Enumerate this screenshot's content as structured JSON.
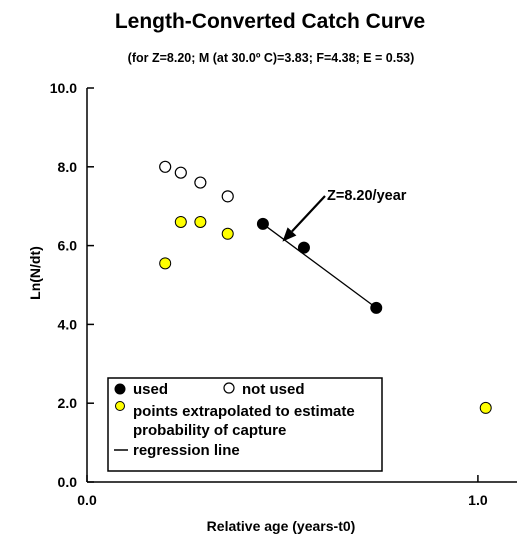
{
  "chart_data": {
    "type": "scatter",
    "title": "Length-Converted Catch Curve",
    "subtitle": "(for Z=8.20; M (at 30.0º C)=3.83; F=4.38; E = 0.53)",
    "xlabel": "Relative age (years-t0)",
    "ylabel": "Ln(N/dt)",
    "xlim": [
      0.0,
      1.1
    ],
    "ylim": [
      0.0,
      10.0
    ],
    "x_ticks": [
      {
        "value": 0.0,
        "label": "0.0"
      },
      {
        "value": 1.0,
        "label": "1.0"
      }
    ],
    "y_ticks": [
      {
        "value": 0.0,
        "label": "0.0"
      },
      {
        "value": 2.0,
        "label": "2.0"
      },
      {
        "value": 4.0,
        "label": "4.0"
      },
      {
        "value": 6.0,
        "label": "6.0"
      },
      {
        "value": 8.0,
        "label": "8.0"
      },
      {
        "value": 10.0,
        "label": "10.0"
      }
    ],
    "grid": false,
    "legend_position": "bottom-left",
    "series": [
      {
        "name": "used",
        "marker": "filled-circle",
        "color": "#000000",
        "points": [
          [
            0.45,
            6.55
          ],
          [
            0.555,
            5.95
          ],
          [
            0.74,
            4.42
          ]
        ]
      },
      {
        "name": "not used",
        "marker": "open-circle",
        "color": "#000000",
        "points": [
          [
            0.2,
            8.0
          ],
          [
            0.24,
            7.85
          ],
          [
            0.29,
            7.6
          ],
          [
            0.36,
            7.25
          ]
        ]
      },
      {
        "name": "points extrapolated  to estimate probability of capture",
        "marker": "yellow-circle",
        "color": "#ffff00",
        "points": [
          [
            0.2,
            5.55
          ],
          [
            0.24,
            6.6
          ],
          [
            0.29,
            6.6
          ],
          [
            0.36,
            6.3
          ],
          [
            1.02,
            1.88
          ]
        ]
      }
    ],
    "regression_line": {
      "name": "regression line",
      "from": [
        0.45,
        6.55
      ],
      "to": [
        0.74,
        4.42
      ],
      "color": "#000000"
    },
    "annotation": {
      "text": "Z=8.20/year",
      "arrow_target": [
        0.5,
        6.1
      ]
    },
    "legend_entries": [
      {
        "label": "used",
        "marker": "filled-circle"
      },
      {
        "label": "not used",
        "marker": "open-circle"
      },
      {
        "label_line1": "points extrapolated  to estimate",
        "label_line2": "probability of capture",
        "marker": "yellow-circle"
      },
      {
        "label": "regression line",
        "marker": "line"
      }
    ]
  }
}
